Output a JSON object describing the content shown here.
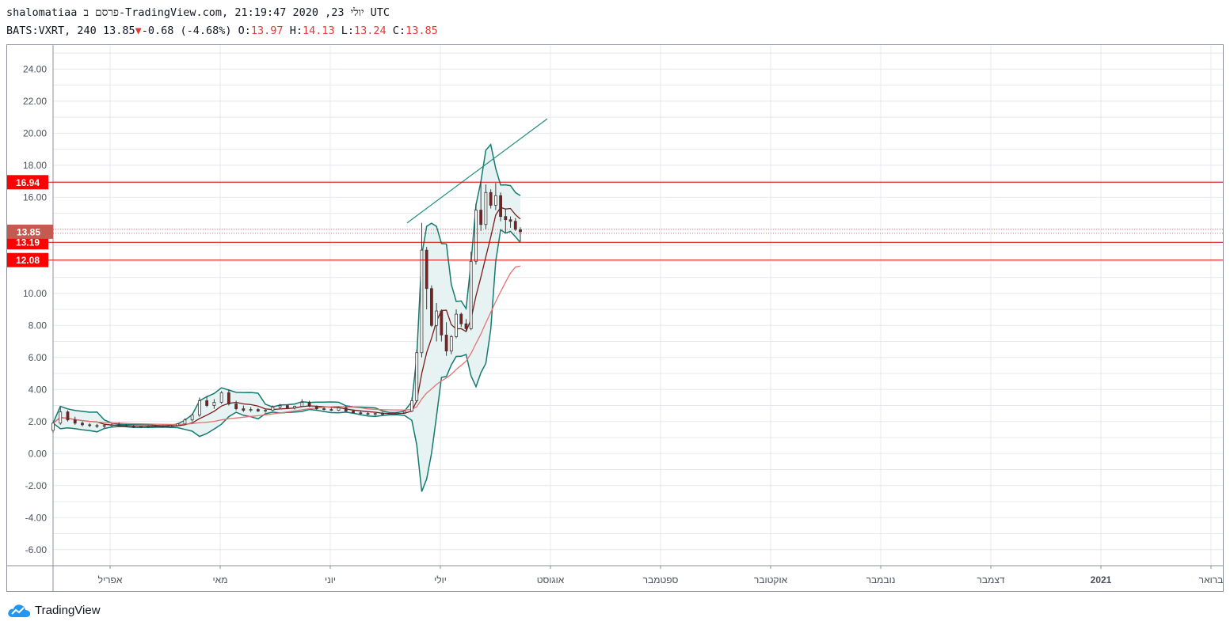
{
  "header": {
    "line1": "shalomatiaa פרסם ב-TradingView.com, יולי 23, 2020 21:19:47 UTC",
    "symbol": "BATS:VXRT, 240",
    "last": "13.85",
    "change": "-0.68 (-4.68%)",
    "o_label": "O:",
    "o": "13.97",
    "h_label": "H:",
    "h": "14.13",
    "l_label": "L:",
    "l": "13.24",
    "c_label": "C:",
    "c": "13.85",
    "down_icon": "triangle-down-icon"
  },
  "logo": {
    "text": "TradingView",
    "icon": "tradingview-cloud-icon"
  },
  "colors": {
    "up": "#26a69a",
    "down": "#ef5350",
    "candle_body_down": "#8b1a1a",
    "bb_band": "#137a70",
    "bb_fill": "#e7f3f2",
    "bb_basis": "#7a1a1a",
    "ma": "#e57373",
    "hline": "#d50000",
    "trendline": "#1f8f7d",
    "grid": "#e6e8ee"
  },
  "chart_data": {
    "type": "candlestick",
    "ylim": [
      -7,
      25.5
    ],
    "y_ticks": [
      "24.00",
      "22.00",
      "20.00",
      "18.00",
      "16.00",
      "10.00",
      "8.00",
      "6.00",
      "4.00",
      "2.00",
      "0.00",
      "-2.00",
      "-4.00",
      "-6.00"
    ],
    "x_ticks": [
      {
        "label": "אפריל",
        "bold": false
      },
      {
        "label": "מאי",
        "bold": false
      },
      {
        "label": "יוני",
        "bold": false
      },
      {
        "label": "יולי",
        "bold": false
      },
      {
        "label": "אוגוסט",
        "bold": false
      },
      {
        "label": "ספטמבר",
        "bold": false
      },
      {
        "label": "אוקטובר",
        "bold": false
      },
      {
        "label": "נובמבר",
        "bold": false
      },
      {
        "label": "דצמבר",
        "bold": false
      },
      {
        "label": "2021",
        "bold": true
      },
      {
        "label": "ברואר",
        "bold": false
      }
    ],
    "horizontal_levels": [
      {
        "value": 16.94,
        "label": "16.94"
      },
      {
        "value": 13.19,
        "label": "13.19"
      },
      {
        "value": 12.08,
        "label": "12.08"
      }
    ],
    "last_price": {
      "value": 13.85,
      "label": "13.85"
    },
    "trendline": {
      "from": [
        0.02,
        14.4
      ],
      "to": [
        0.27,
        20.9
      ]
    },
    "candles": [
      [
        1.45,
        2.0,
        1.3,
        1.9
      ],
      [
        1.9,
        2.9,
        1.8,
        2.6
      ],
      [
        2.6,
        2.7,
        2.0,
        2.1
      ],
      [
        2.1,
        2.3,
        1.8,
        1.9
      ],
      [
        1.9,
        2.0,
        1.7,
        1.8
      ],
      [
        1.8,
        1.9,
        1.65,
        1.75
      ],
      [
        1.75,
        1.85,
        1.6,
        1.7
      ],
      [
        1.7,
        1.8,
        1.6,
        1.75
      ],
      [
        1.75,
        1.9,
        1.65,
        1.8
      ],
      [
        1.8,
        1.95,
        1.7,
        1.75
      ],
      [
        1.75,
        1.85,
        1.65,
        1.7
      ],
      [
        1.7,
        1.8,
        1.6,
        1.65
      ],
      [
        1.65,
        1.75,
        1.58,
        1.7
      ],
      [
        1.7,
        1.8,
        1.62,
        1.72
      ],
      [
        1.72,
        1.8,
        1.65,
        1.7
      ],
      [
        1.7,
        1.78,
        1.62,
        1.68
      ],
      [
        1.68,
        1.8,
        1.6,
        1.75
      ],
      [
        1.75,
        1.9,
        1.7,
        1.85
      ],
      [
        1.85,
        2.2,
        1.8,
        2.1
      ],
      [
        2.1,
        2.5,
        2.0,
        2.4
      ],
      [
        2.4,
        3.5,
        2.3,
        3.3
      ],
      [
        3.3,
        3.6,
        2.9,
        3.0
      ],
      [
        3.0,
        3.4,
        2.8,
        3.2
      ],
      [
        3.2,
        3.9,
        3.1,
        3.8
      ],
      [
        3.8,
        4.0,
        3.0,
        3.1
      ],
      [
        3.1,
        3.3,
        2.7,
        2.8
      ],
      [
        2.8,
        3.0,
        2.6,
        2.7
      ],
      [
        2.7,
        2.9,
        2.6,
        2.75
      ],
      [
        2.75,
        2.85,
        2.6,
        2.65
      ],
      [
        2.65,
        2.8,
        2.55,
        2.7
      ],
      [
        2.7,
        3.0,
        2.65,
        2.9
      ],
      [
        2.9,
        3.1,
        2.8,
        3.0
      ],
      [
        3.0,
        3.05,
        2.8,
        2.85
      ],
      [
        2.85,
        3.0,
        2.75,
        2.95
      ],
      [
        2.95,
        3.4,
        2.9,
        3.2
      ],
      [
        3.2,
        3.3,
        2.9,
        2.95
      ],
      [
        2.95,
        3.0,
        2.7,
        2.8
      ],
      [
        2.8,
        2.9,
        2.7,
        2.75
      ],
      [
        2.75,
        2.85,
        2.65,
        2.7
      ],
      [
        2.7,
        2.9,
        2.65,
        2.85
      ],
      [
        2.85,
        2.95,
        2.6,
        2.65
      ],
      [
        2.65,
        2.75,
        2.5,
        2.55
      ],
      [
        2.55,
        2.65,
        2.45,
        2.5
      ],
      [
        2.5,
        2.6,
        2.4,
        2.45
      ],
      [
        2.45,
        2.55,
        2.35,
        2.5
      ],
      [
        2.5,
        2.6,
        2.4,
        2.45
      ],
      [
        2.45,
        2.55,
        2.4,
        2.5
      ],
      [
        2.5,
        2.6,
        2.45,
        2.55
      ],
      [
        2.55,
        2.7,
        2.5,
        2.65
      ],
      [
        2.65,
        3.5,
        2.6,
        3.3
      ],
      [
        3.3,
        6.5,
        3.2,
        6.3
      ],
      [
        6.3,
        14.4,
        6.0,
        12.7
      ],
      [
        12.7,
        12.9,
        9.0,
        10.3
      ],
      [
        10.3,
        10.5,
        7.9,
        8.0
      ],
      [
        8.0,
        9.4,
        7.0,
        8.9
      ],
      [
        8.9,
        9.0,
        7.0,
        7.4
      ],
      [
        7.4,
        8.2,
        6.1,
        6.4
      ],
      [
        6.4,
        7.4,
        6.2,
        7.3
      ],
      [
        7.3,
        9.0,
        7.2,
        8.7
      ],
      [
        8.7,
        8.8,
        7.9,
        8.1
      ],
      [
        8.1,
        8.4,
        7.6,
        7.8
      ],
      [
        7.8,
        12.6,
        7.7,
        12.0
      ],
      [
        12.0,
        15.6,
        11.8,
        15.2
      ],
      [
        15.2,
        17.0,
        13.9,
        14.3
      ],
      [
        14.3,
        16.8,
        14.0,
        16.3
      ],
      [
        16.3,
        16.5,
        15.3,
        15.5
      ],
      [
        15.5,
        16.9,
        15.2,
        16.1
      ],
      [
        16.1,
        16.3,
        14.5,
        14.8
      ],
      [
        14.8,
        15.3,
        13.8,
        14.6
      ],
      [
        14.6,
        14.8,
        14.1,
        14.5
      ],
      [
        14.5,
        14.7,
        13.9,
        14.0
      ],
      [
        13.97,
        14.13,
        13.24,
        13.85
      ]
    ]
  }
}
